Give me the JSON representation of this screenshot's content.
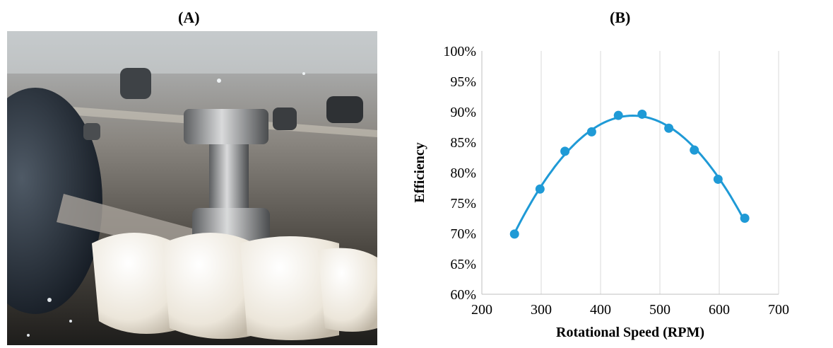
{
  "panels": {
    "a_label": "(A)",
    "b_label": "(B)"
  },
  "photo": {
    "subject": "turbine-runner-photo"
  },
  "chart_data": {
    "type": "scatter",
    "xlabel": "Rotational Speed (RPM)",
    "ylabel": "Efficiency",
    "xlim": [
      200,
      700
    ],
    "ylim": [
      60,
      100
    ],
    "x_ticks": [
      200,
      300,
      400,
      500,
      600,
      700
    ],
    "y_ticks": [
      "60%",
      "65%",
      "70%",
      "75%",
      "80%",
      "85%",
      "90%",
      "95%",
      "100%"
    ],
    "y_tick_values": [
      60,
      65,
      70,
      75,
      80,
      85,
      90,
      95,
      100
    ],
    "grid": "vertical",
    "color": "#1f9ad6",
    "series": [
      {
        "x": [
          255,
          298,
          340,
          385,
          430,
          470,
          515,
          558,
          598,
          643
        ],
        "y": [
          69.9,
          77.3,
          83.5,
          86.7,
          89.4,
          89.6,
          87.3,
          83.7,
          78.9,
          72.5
        ],
        "trendline": "polynomial"
      }
    ]
  }
}
